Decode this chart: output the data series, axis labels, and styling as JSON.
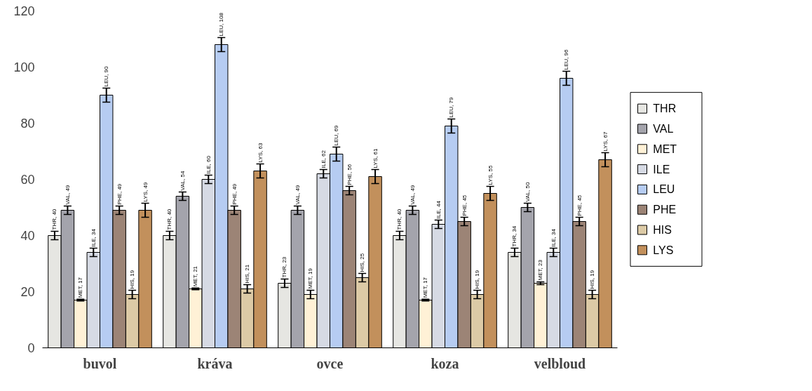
{
  "chart_data": {
    "type": "bar",
    "categories": [
      "buvol",
      "kráva",
      "ovce",
      "koza",
      "velbloud"
    ],
    "series": [
      {
        "name": "THR",
        "color": "#e6e6e2",
        "values": [
          40,
          40,
          23,
          40,
          34
        ],
        "errors": [
          1.5,
          1.5,
          1.5,
          1.5,
          1.5
        ],
        "value_labels": [
          "THR, 40",
          "THR, 40",
          "THR, 23",
          "THR, 40",
          "THR, 34"
        ]
      },
      {
        "name": "VAL",
        "color": "#a4a4ac",
        "values": [
          49,
          54,
          49,
          49,
          50
        ],
        "errors": [
          1.5,
          1.5,
          1.5,
          1.5,
          1.5
        ],
        "value_labels": [
          "VAL, 49",
          "VAL, 54",
          "VAL, 49",
          "VAL, 49",
          "VAL, 50"
        ]
      },
      {
        "name": "MET",
        "color": "#fff1d6",
        "values": [
          17,
          21,
          19,
          17,
          23
        ],
        "errors": [
          0.3,
          0.3,
          1.5,
          0.3,
          0.5
        ],
        "value_labels": [
          "MET, 17",
          "MET, 21",
          "MET, 19",
          "MET, 17",
          "MET, 23"
        ]
      },
      {
        "name": "ILE",
        "color": "#d6dae4",
        "values": [
          34,
          60,
          62,
          44,
          34
        ],
        "errors": [
          1.5,
          1.5,
          1.5,
          1.5,
          1.5
        ],
        "value_labels": [
          "ILE, 34",
          "ILE, 60",
          "ILE, 62",
          "ILE, 44",
          "ILE, 34"
        ]
      },
      {
        "name": "LEU",
        "color": "#b6ccf2",
        "values": [
          90,
          108,
          69,
          79,
          96
        ],
        "errors": [
          2.5,
          2.5,
          2.5,
          2.5,
          2.5
        ],
        "value_labels": [
          "LEU, 90",
          "LEU, 108",
          "LEU, 69",
          "LEU, 79",
          "LEU, 96"
        ]
      },
      {
        "name": "PHE",
        "color": "#9c8476",
        "values": [
          49,
          49,
          56,
          45,
          45
        ],
        "errors": [
          1.5,
          1.5,
          1.5,
          1.5,
          1.5
        ],
        "value_labels": [
          "PHE, 49",
          "PHE, 49",
          "PHE, 56",
          "PHE, 45",
          "PHE, 45"
        ]
      },
      {
        "name": "HIS",
        "color": "#dccaa6",
        "values": [
          19,
          21,
          25,
          19,
          19
        ],
        "errors": [
          1.5,
          1.5,
          1.5,
          1.5,
          1.5
        ],
        "value_labels": [
          "HIS, 19",
          "HIS, 21",
          "HIS, 25",
          "HIS, 19",
          "HIS, 19"
        ]
      },
      {
        "name": "LYS",
        "color": "#c2905c",
        "values": [
          49,
          63,
          61,
          55,
          67
        ],
        "errors": [
          2.5,
          2.5,
          2.5,
          2.5,
          2.5
        ],
        "value_labels": [
          "LYS, 49",
          "LYS, 63",
          "LYS, 61",
          "LYS, 55",
          "LYS, 67"
        ]
      }
    ],
    "ylim": [
      0,
      120
    ],
    "yticks": [
      0,
      20,
      40,
      60,
      80,
      100,
      120
    ],
    "grid": false,
    "legend": "right"
  }
}
